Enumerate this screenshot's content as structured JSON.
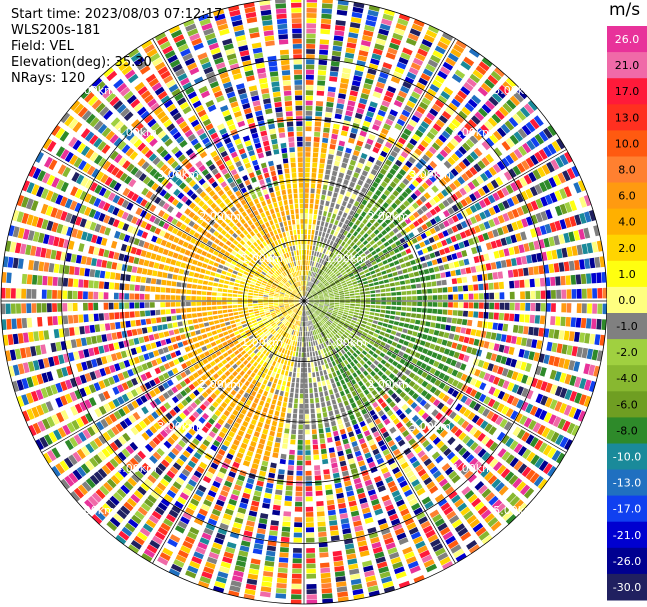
{
  "header": {
    "start_time": "Start time: 2023/08/03 07:12:17",
    "station": "WLS200s-181",
    "field": "Field: VEL",
    "elevation": "Elevation(deg): 35.30",
    "nrays": "NRays: 120"
  },
  "chart_data": {
    "type": "ppi-radar-velocity",
    "field": "VEL",
    "units": "m/s",
    "n_rays": 120,
    "range_rings_km": [
      1.0,
      2.0,
      3.0,
      4.0,
      5.0
    ],
    "ring_labels": [
      "1.00km",
      "2.00km",
      "3.00km",
      "4.00km",
      "5.00km"
    ],
    "colorbar": {
      "unit_label": "m/s",
      "ticks": [
        "26.0",
        "21.0",
        "17.0",
        "13.0",
        "10.0",
        "8.0",
        "6.0",
        "4.0",
        "2.0",
        "1.0",
        "0.0",
        "-1.0",
        "-2.0",
        "-4.0",
        "-6.0",
        "-8.0",
        "-10.0",
        "-13.0",
        "-17.0",
        "-21.0",
        "-26.0",
        "-30.0"
      ],
      "colors": [
        "#e8329a",
        "#f06aa8",
        "#ff1a3a",
        "#ff3020",
        "#ff5a10",
        "#ff8030",
        "#ff9a10",
        "#ffb000",
        "#ffd400",
        "#ffff10",
        "#ffff80",
        "#808080",
        "#a0d040",
        "#88b830",
        "#6f9e22",
        "#2e8a2a",
        "#1a8a9a",
        "#2070c0",
        "#1040f0",
        "#0000d0",
        "#000090",
        "#202060"
      ]
    },
    "velocity_pattern": {
      "near_field_max_range_km": 2.4,
      "approaching_sector_deg": [
        180,
        360
      ],
      "receding_sector_deg": [
        0,
        180
      ],
      "typical_positive_m_s": 4.0,
      "typical_negative_m_s": -4.0
    }
  }
}
